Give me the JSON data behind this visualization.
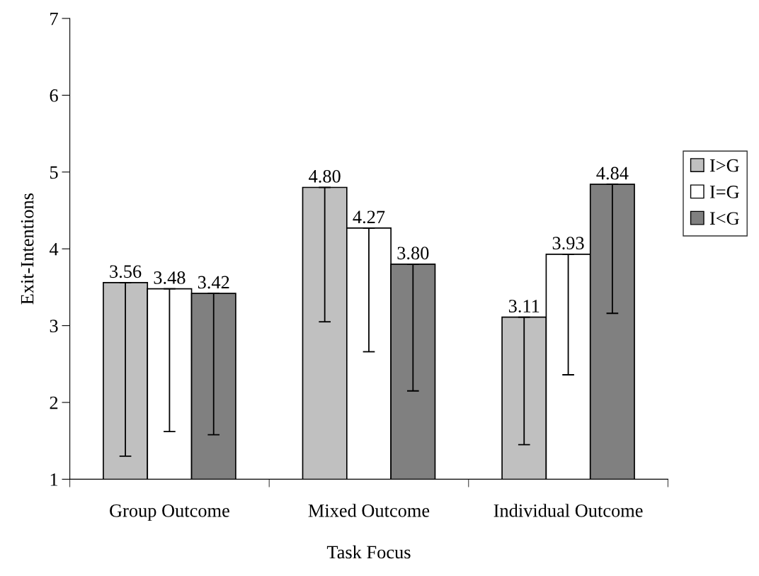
{
  "chart_data": {
    "type": "bar",
    "xlabel": "Task Focus",
    "ylabel": "Exit-Intentions",
    "categories": [
      "Group Outcome",
      "Mixed Outcome",
      "Individual Outcome"
    ],
    "series": [
      {
        "name": "I>G",
        "color": "#c0c0c0",
        "values": [
          3.56,
          4.8,
          3.11
        ],
        "value_labels": [
          "3.56",
          "4.80",
          "3.11"
        ],
        "errors": [
          [
            1.3,
            3.56
          ],
          [
            3.05,
            4.8
          ],
          [
            1.45,
            3.11
          ]
        ]
      },
      {
        "name": "I=G",
        "color": "#ffffff",
        "values": [
          3.48,
          4.27,
          3.93
        ],
        "value_labels": [
          "3.48",
          "4.27",
          "3.93"
        ],
        "errors": [
          [
            1.62,
            3.48
          ],
          [
            2.66,
            4.27
          ],
          [
            2.36,
            3.93
          ]
        ]
      },
      {
        "name": "I<G",
        "color": "#808080",
        "values": [
          3.42,
          3.8,
          4.84
        ],
        "value_labels": [
          "3.42",
          "3.80",
          "4.84"
        ],
        "errors": [
          [
            1.58,
            3.42
          ],
          [
            2.15,
            3.8
          ],
          [
            3.16,
            4.84
          ]
        ]
      }
    ],
    "ylim": [
      1,
      7
    ],
    "yticks": [
      1,
      2,
      3,
      4,
      5,
      6,
      7
    ],
    "legend": "right"
  }
}
